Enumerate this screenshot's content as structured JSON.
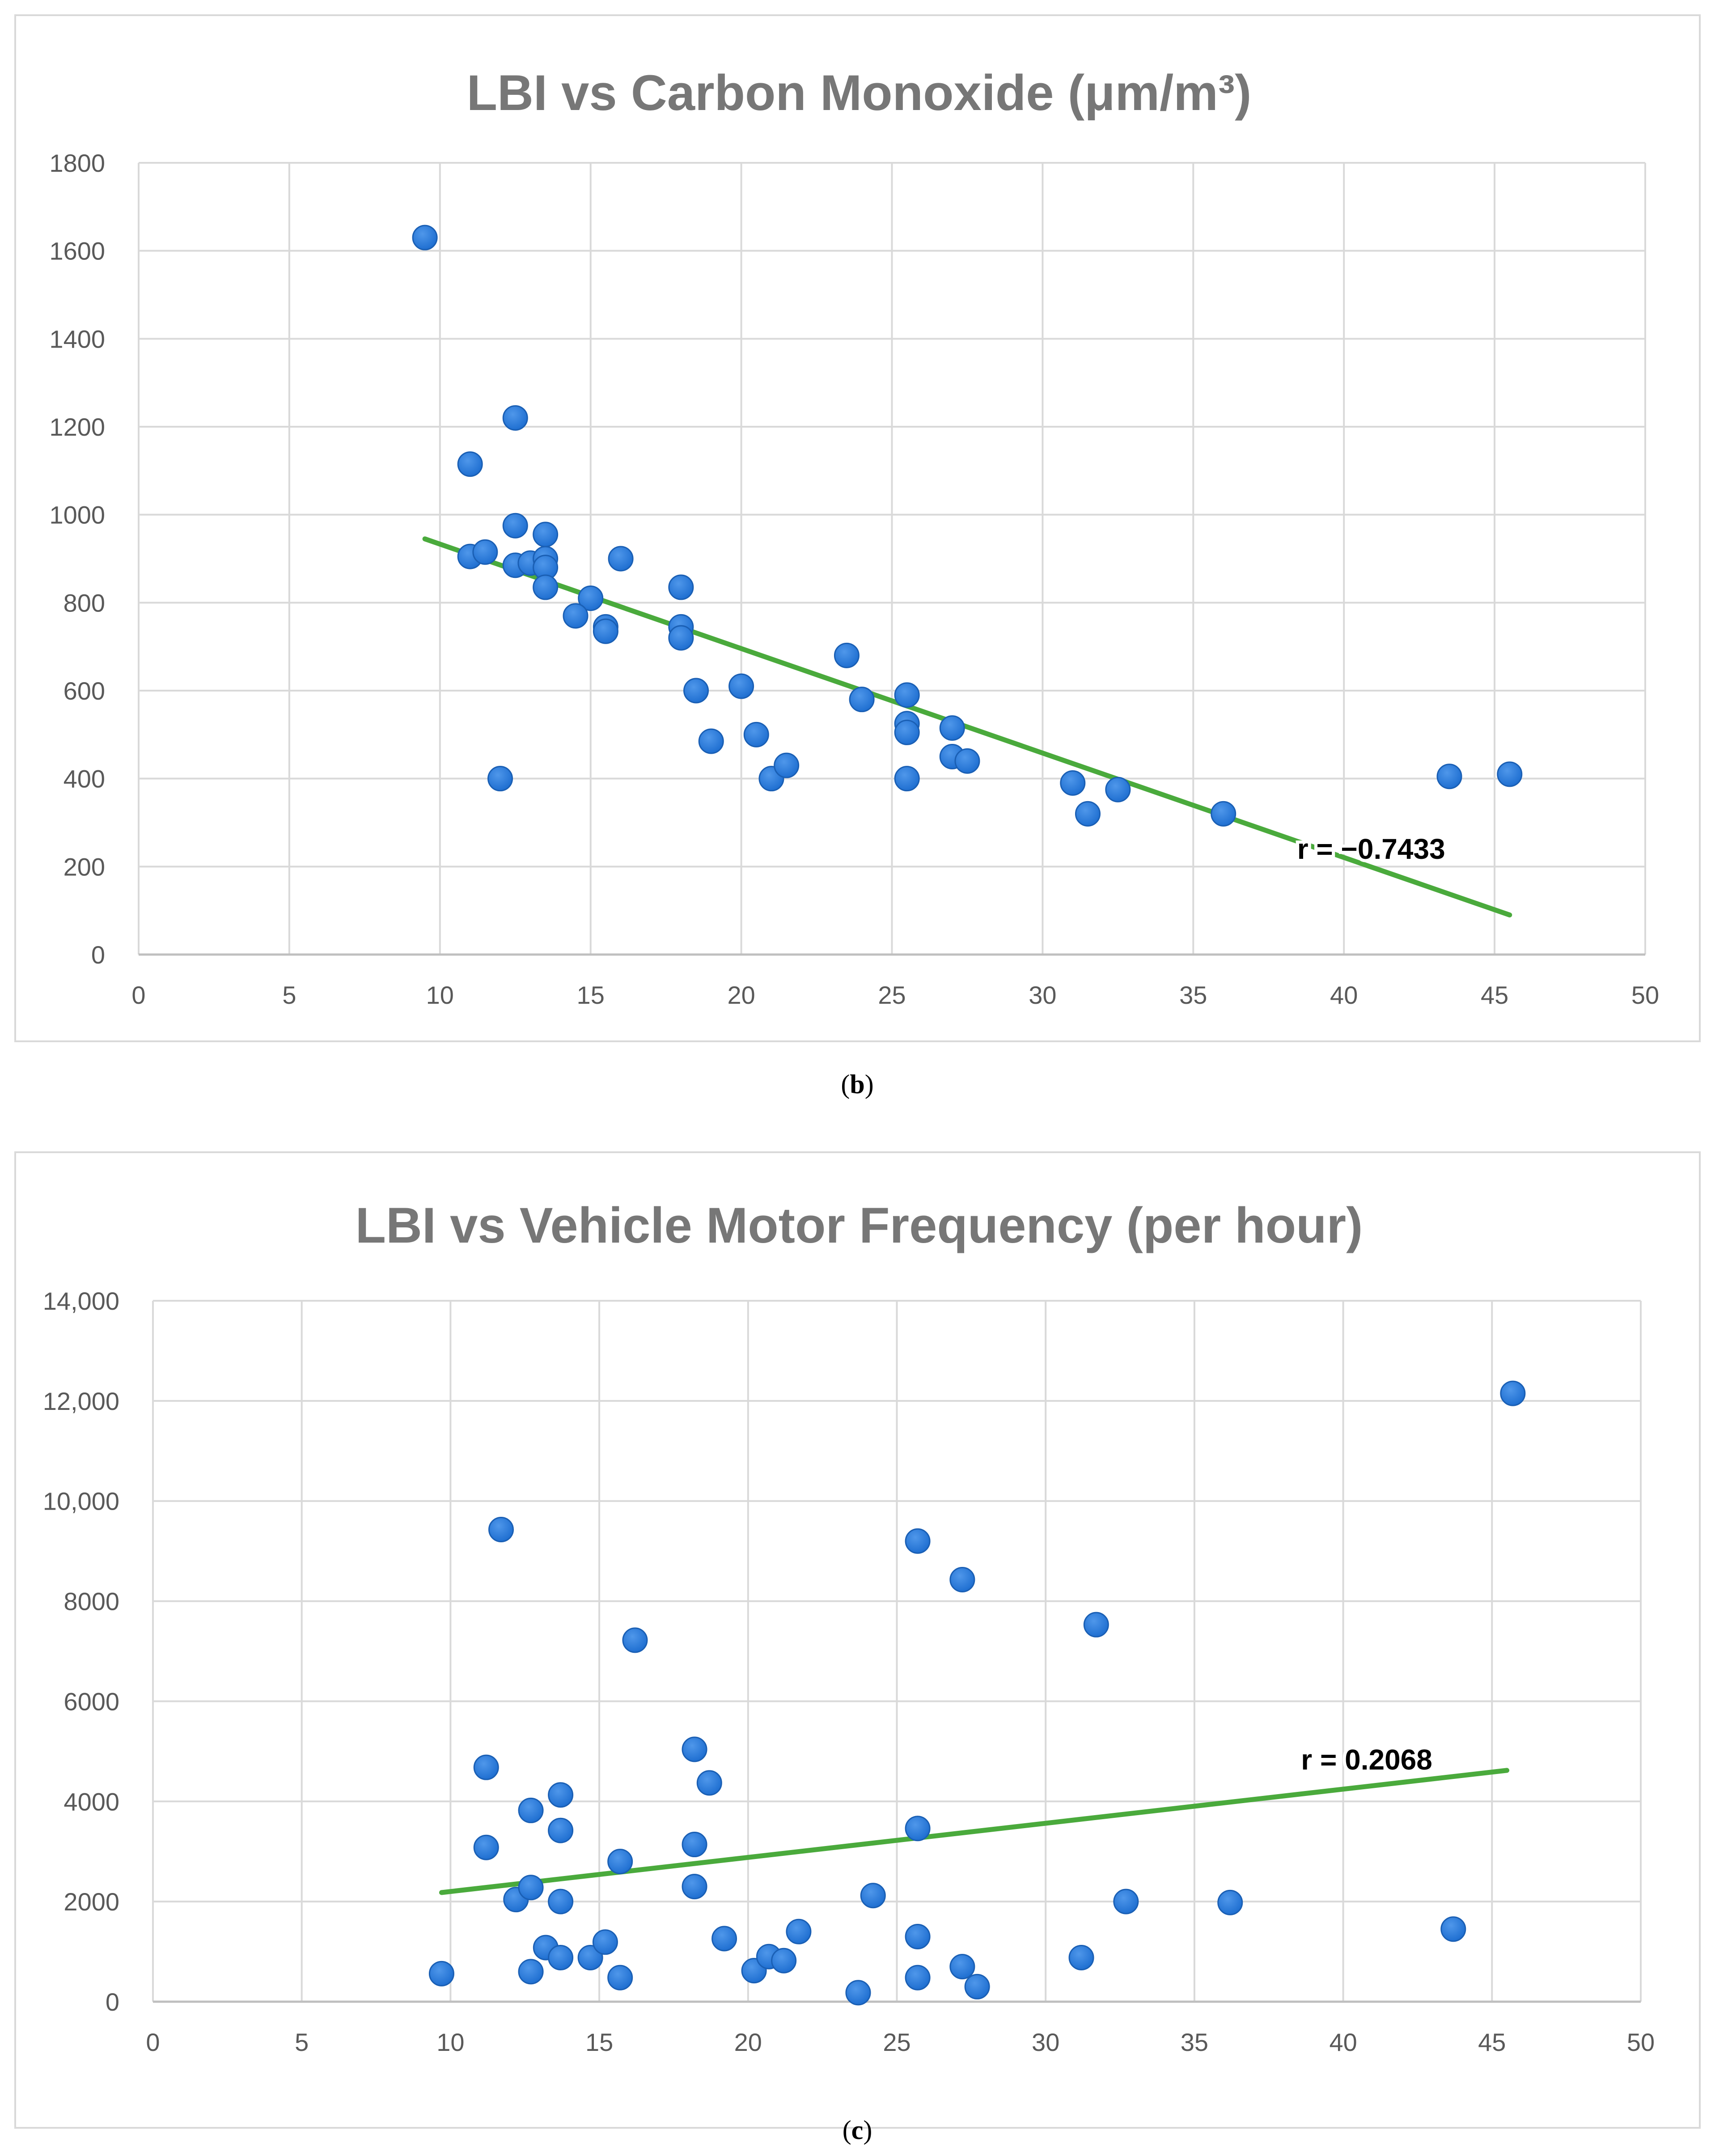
{
  "chart_data": [
    {
      "type": "scatter",
      "title": "LBI vs Carbon Monoxide (μm/m³)",
      "xlabel": "",
      "ylabel": "",
      "xlim": [
        0,
        50
      ],
      "ylim": [
        0,
        1800
      ],
      "x_ticks": [
        0,
        5,
        10,
        15,
        20,
        25,
        30,
        35,
        40,
        45,
        50
      ],
      "y_ticks": [
        0,
        200,
        400,
        600,
        800,
        1000,
        1200,
        1400,
        1600,
        1800
      ],
      "y_tick_labels": [
        "0",
        "200",
        "400",
        "600",
        "800",
        "1000",
        "1200",
        "1400",
        "1600",
        "1800"
      ],
      "grid": true,
      "marker_color": "#1f6fd1",
      "trendline_color": "#4aaa3c",
      "trendline": {
        "x": [
          9.5,
          45.5
        ],
        "y": [
          945,
          90
        ]
      },
      "correlation_label": "r = −0.7433",
      "caption": "b",
      "points": [
        {
          "x": 9.5,
          "y": 1630
        },
        {
          "x": 11,
          "y": 1115
        },
        {
          "x": 12.5,
          "y": 1220
        },
        {
          "x": 11,
          "y": 905
        },
        {
          "x": 11.5,
          "y": 915
        },
        {
          "x": 12.5,
          "y": 975
        },
        {
          "x": 12.5,
          "y": 885
        },
        {
          "x": 13,
          "y": 890
        },
        {
          "x": 13.5,
          "y": 955
        },
        {
          "x": 13.5,
          "y": 900
        },
        {
          "x": 13.5,
          "y": 880
        },
        {
          "x": 13.5,
          "y": 835
        },
        {
          "x": 15,
          "y": 810
        },
        {
          "x": 14.5,
          "y": 770
        },
        {
          "x": 15.5,
          "y": 745
        },
        {
          "x": 15.5,
          "y": 735
        },
        {
          "x": 16,
          "y": 900
        },
        {
          "x": 18,
          "y": 835
        },
        {
          "x": 18,
          "y": 745
        },
        {
          "x": 18,
          "y": 720
        },
        {
          "x": 18.5,
          "y": 600
        },
        {
          "x": 19,
          "y": 485
        },
        {
          "x": 20,
          "y": 610
        },
        {
          "x": 20.5,
          "y": 500
        },
        {
          "x": 21,
          "y": 400
        },
        {
          "x": 21.5,
          "y": 430
        },
        {
          "x": 12,
          "y": 400
        },
        {
          "x": 23.5,
          "y": 680
        },
        {
          "x": 24,
          "y": 580
        },
        {
          "x": 25.5,
          "y": 590
        },
        {
          "x": 25.5,
          "y": 525
        },
        {
          "x": 25.5,
          "y": 505
        },
        {
          "x": 25.5,
          "y": 400
        },
        {
          "x": 27,
          "y": 515
        },
        {
          "x": 27,
          "y": 450
        },
        {
          "x": 27.5,
          "y": 440
        },
        {
          "x": 31,
          "y": 390
        },
        {
          "x": 31.5,
          "y": 320
        },
        {
          "x": 32.5,
          "y": 375
        },
        {
          "x": 36,
          "y": 320
        },
        {
          "x": 43.5,
          "y": 405
        },
        {
          "x": 45.5,
          "y": 410
        }
      ]
    },
    {
      "type": "scatter",
      "title": "LBI vs Vehicle Motor Frequency (per hour)",
      "xlabel": "",
      "ylabel": "",
      "xlim": [
        0,
        50
      ],
      "ylim": [
        0,
        14000
      ],
      "x_ticks": [
        0,
        5,
        10,
        15,
        20,
        25,
        30,
        35,
        40,
        45,
        50
      ],
      "y_ticks": [
        0,
        2000,
        4000,
        6000,
        8000,
        10000,
        12000,
        14000
      ],
      "y_tick_labels": [
        "0",
        "2000",
        "4000",
        "6000",
        "8000",
        "10,000",
        "12,000",
        "14,000"
      ],
      "grid": true,
      "marker_color": "#1f6fd1",
      "trendline_color": "#4aaa3c",
      "trendline": {
        "x": [
          9.7,
          45.5
        ],
        "y": [
          2180,
          4620
        ]
      },
      "correlation_label": "r = 0.2068",
      "caption": "c",
      "points": [
        {
          "x": 9.7,
          "y": 560
        },
        {
          "x": 11.2,
          "y": 4680
        },
        {
          "x": 11.2,
          "y": 3080
        },
        {
          "x": 11.7,
          "y": 9430
        },
        {
          "x": 12.2,
          "y": 2040
        },
        {
          "x": 12.7,
          "y": 2280
        },
        {
          "x": 12.7,
          "y": 3820
        },
        {
          "x": 12.7,
          "y": 600
        },
        {
          "x": 13.2,
          "y": 1080
        },
        {
          "x": 13.7,
          "y": 4130
        },
        {
          "x": 13.7,
          "y": 3420
        },
        {
          "x": 13.7,
          "y": 2000
        },
        {
          "x": 13.7,
          "y": 880
        },
        {
          "x": 14.7,
          "y": 880
        },
        {
          "x": 15.2,
          "y": 1190
        },
        {
          "x": 15.7,
          "y": 2800
        },
        {
          "x": 15.7,
          "y": 480
        },
        {
          "x": 16.2,
          "y": 7220
        },
        {
          "x": 18.2,
          "y": 5040
        },
        {
          "x": 18.2,
          "y": 3140
        },
        {
          "x": 18.2,
          "y": 2300
        },
        {
          "x": 18.7,
          "y": 4370
        },
        {
          "x": 19.2,
          "y": 1260
        },
        {
          "x": 20.2,
          "y": 620
        },
        {
          "x": 20.7,
          "y": 900
        },
        {
          "x": 21.2,
          "y": 820
        },
        {
          "x": 21.7,
          "y": 1400
        },
        {
          "x": 23.7,
          "y": 180
        },
        {
          "x": 24.2,
          "y": 2120
        },
        {
          "x": 25.7,
          "y": 9200
        },
        {
          "x": 25.7,
          "y": 3460
        },
        {
          "x": 25.7,
          "y": 1300
        },
        {
          "x": 25.7,
          "y": 480
        },
        {
          "x": 27.2,
          "y": 8430
        },
        {
          "x": 27.2,
          "y": 700
        },
        {
          "x": 27.7,
          "y": 300
        },
        {
          "x": 31.2,
          "y": 880
        },
        {
          "x": 31.7,
          "y": 7530
        },
        {
          "x": 32.7,
          "y": 2000
        },
        {
          "x": 36.2,
          "y": 1980
        },
        {
          "x": 43.7,
          "y": 1450
        },
        {
          "x": 45.7,
          "y": 12150
        }
      ]
    }
  ]
}
